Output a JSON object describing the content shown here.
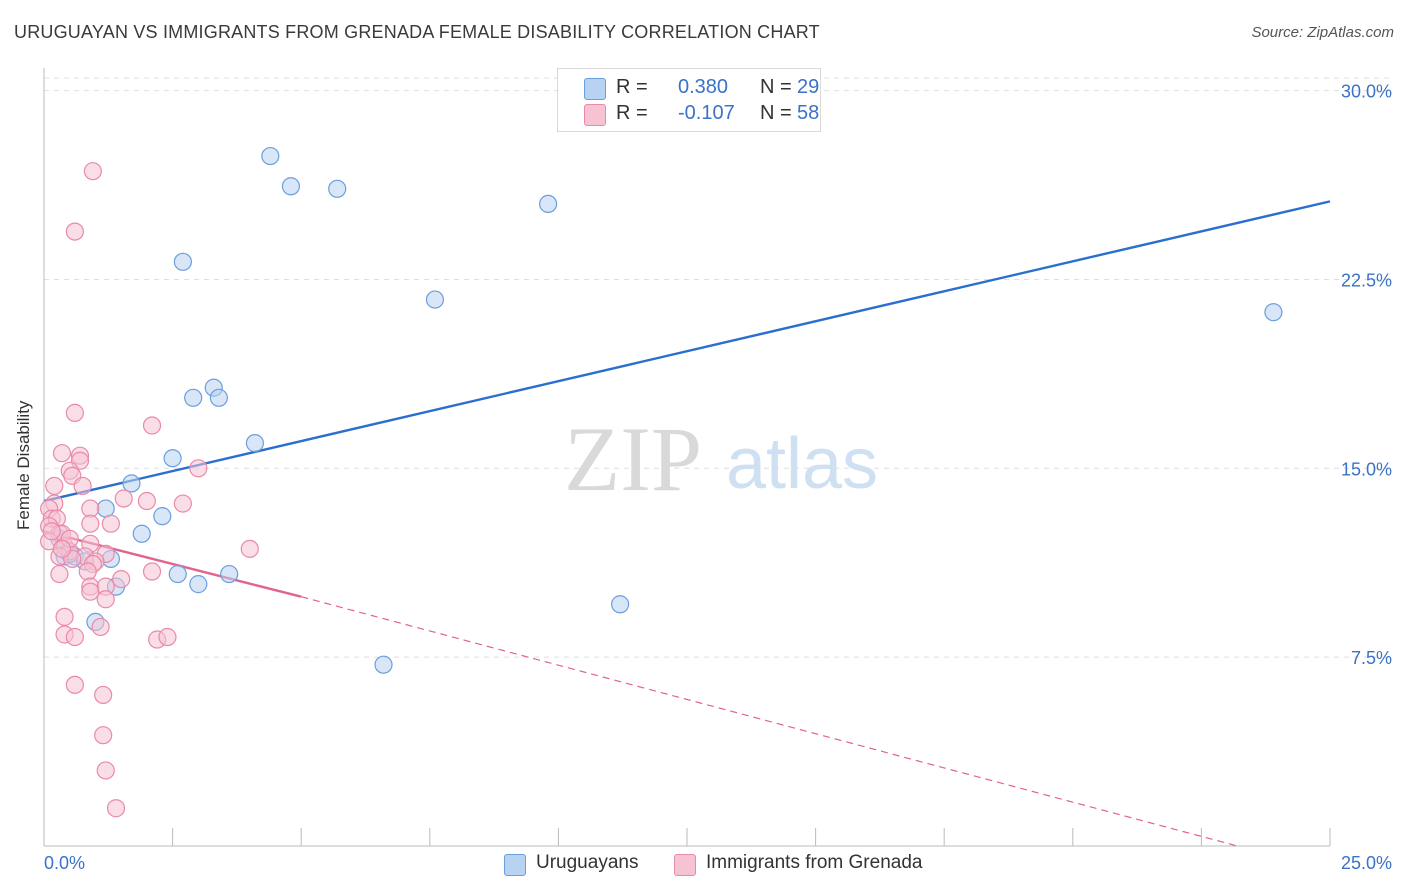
{
  "title": "URUGUAYAN VS IMMIGRANTS FROM GRENADA FEMALE DISABILITY CORRELATION CHART",
  "source": "Source: ZipAtlas.com",
  "watermark": {
    "zip": "ZIP",
    "atlas": "atlas"
  },
  "colors": {
    "blue": "#6a9fdc",
    "blue_fill": "#b8d2f2",
    "blue_line": "#2a6fcf",
    "pink": "#e98aa8",
    "pink_fill": "#f6c3d3",
    "pink_line": "#e0648e",
    "axis_text": "#3a72c8",
    "grid": "#dedede"
  },
  "legend_top": [
    {
      "label": "R =",
      "r": "0.380",
      "n_label": "N =",
      "n": "29",
      "series": "blue"
    },
    {
      "label": "R =",
      "r": "-0.107",
      "n_label": "N =",
      "n": "58",
      "series": "pink"
    }
  ],
  "legend_bottom": [
    {
      "label": "Uruguayans",
      "series": "blue"
    },
    {
      "label": "Immigrants from Grenada",
      "series": "pink"
    }
  ],
  "chart_data": {
    "type": "scatter",
    "title": "URUGUAYAN VS IMMIGRANTS FROM GRENADA FEMALE DISABILITY CORRELATION CHART",
    "xlabel": "",
    "ylabel": "Female Disability",
    "xlim": [
      0,
      25
    ],
    "ylim": [
      0,
      30.5
    ],
    "x_tick_labels": [
      "0.0%",
      "25.0%"
    ],
    "y_ticks": [
      7.5,
      15.0,
      22.5,
      30.0
    ],
    "y_tick_labels": [
      "7.5%",
      "15.0%",
      "22.5%",
      "30.0%"
    ],
    "grid": true,
    "series": [
      {
        "name": "Uruguayans",
        "color": "blue",
        "points": [
          [
            4.4,
            27.4
          ],
          [
            4.8,
            26.2
          ],
          [
            5.7,
            26.1
          ],
          [
            9.8,
            25.5
          ],
          [
            2.7,
            23.2
          ],
          [
            7.6,
            21.7
          ],
          [
            23.9,
            21.2
          ],
          [
            3.3,
            18.2
          ],
          [
            2.9,
            17.8
          ],
          [
            3.4,
            17.8
          ],
          [
            4.1,
            16.0
          ],
          [
            2.5,
            15.4
          ],
          [
            1.7,
            14.4
          ],
          [
            1.2,
            13.4
          ],
          [
            2.3,
            13.1
          ],
          [
            1.9,
            12.4
          ],
          [
            0.4,
            11.5
          ],
          [
            0.6,
            11.5
          ],
          [
            0.8,
            11.3
          ],
          [
            1.3,
            11.4
          ],
          [
            0.5,
            11.6
          ],
          [
            2.6,
            10.8
          ],
          [
            3.6,
            10.8
          ],
          [
            1.4,
            10.3
          ],
          [
            3.0,
            10.4
          ],
          [
            11.2,
            9.6
          ],
          [
            1.0,
            8.9
          ],
          [
            6.6,
            7.2
          ],
          [
            0.3,
            12.2
          ]
        ],
        "trend": {
          "x": [
            0,
            25
          ],
          "y": [
            13.7,
            25.6
          ]
        }
      },
      {
        "name": "Immigrants from Grenada",
        "color": "pink",
        "points": [
          [
            0.95,
            26.8
          ],
          [
            0.6,
            24.4
          ],
          [
            0.6,
            17.2
          ],
          [
            2.1,
            16.7
          ],
          [
            0.35,
            15.6
          ],
          [
            0.7,
            15.5
          ],
          [
            0.7,
            15.3
          ],
          [
            0.5,
            14.9
          ],
          [
            0.55,
            14.7
          ],
          [
            3.0,
            15.0
          ],
          [
            0.2,
            14.3
          ],
          [
            0.75,
            14.3
          ],
          [
            0.2,
            13.6
          ],
          [
            1.55,
            13.8
          ],
          [
            2.0,
            13.7
          ],
          [
            2.7,
            13.6
          ],
          [
            0.1,
            13.4
          ],
          [
            0.9,
            13.4
          ],
          [
            0.15,
            13.0
          ],
          [
            0.25,
            13.0
          ],
          [
            0.1,
            12.7
          ],
          [
            0.9,
            12.8
          ],
          [
            1.3,
            12.8
          ],
          [
            0.3,
            12.4
          ],
          [
            0.35,
            12.4
          ],
          [
            0.1,
            12.1
          ],
          [
            0.4,
            11.9
          ],
          [
            0.9,
            12.0
          ],
          [
            0.5,
            11.7
          ],
          [
            0.3,
            11.5
          ],
          [
            1.2,
            11.6
          ],
          [
            0.8,
            11.5
          ],
          [
            0.55,
            11.4
          ],
          [
            1.0,
            11.3
          ],
          [
            0.95,
            11.2
          ],
          [
            4.0,
            11.8
          ],
          [
            0.3,
            10.8
          ],
          [
            0.85,
            10.9
          ],
          [
            2.1,
            10.9
          ],
          [
            1.5,
            10.6
          ],
          [
            0.9,
            10.3
          ],
          [
            1.2,
            10.3
          ],
          [
            0.9,
            10.1
          ],
          [
            1.2,
            9.8
          ],
          [
            0.4,
            9.1
          ],
          [
            1.1,
            8.7
          ],
          [
            0.4,
            8.4
          ],
          [
            0.6,
            8.3
          ],
          [
            2.2,
            8.2
          ],
          [
            2.4,
            8.3
          ],
          [
            0.6,
            6.4
          ],
          [
            1.15,
            6.0
          ],
          [
            1.15,
            4.4
          ],
          [
            1.2,
            3.0
          ],
          [
            1.4,
            1.5
          ],
          [
            0.15,
            12.5
          ],
          [
            0.5,
            12.2
          ],
          [
            0.35,
            11.8
          ]
        ],
        "trend": {
          "x": [
            0,
            5.0
          ],
          "y": [
            12.5,
            9.9
          ]
        },
        "trend_extension": {
          "x": [
            5.0,
            23.2
          ],
          "y": [
            9.9,
            0.0
          ]
        }
      }
    ]
  }
}
